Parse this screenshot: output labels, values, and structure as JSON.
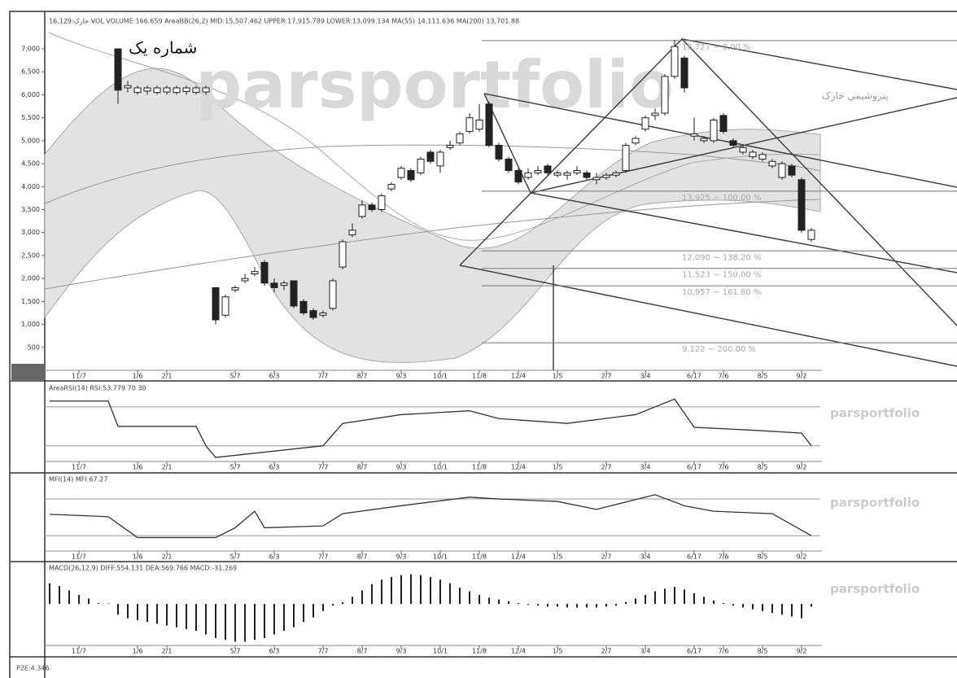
{
  "header": "16,129:خارک VOL VOLUME:166.659 AreaBB(26,2) MID:15,507.462 UPPER:17,915.789 LOWER:13,099.134 MA(55) 14,111.636 MA(200) 13,701.88",
  "caption": "شماره یک",
  "symbol_name": "پتروشیمی خارک",
  "watermark": "parsportfolio",
  "footer": "P2E:4.346",
  "chart_data": [
    {
      "type": "candlestick",
      "x": [
        7,
        8,
        9,
        10,
        11,
        12,
        13,
        14,
        15,
        16,
        17,
        18,
        19,
        20,
        21,
        22,
        23,
        24,
        25,
        26,
        27,
        28,
        29,
        30,
        31,
        32,
        33,
        34,
        35,
        36,
        37,
        38,
        39,
        40,
        41,
        42,
        43,
        44,
        45,
        46,
        47,
        48,
        49,
        50,
        51,
        52,
        53,
        54,
        55,
        56,
        57,
        58,
        59,
        60,
        61,
        62,
        63,
        64,
        65,
        66,
        67,
        68,
        69,
        70,
        71,
        72,
        73,
        74,
        75,
        76,
        77,
        78
      ],
      "open": [
        7000,
        6150,
        6050,
        6080,
        6050,
        6060,
        6050,
        6070,
        6050,
        6060,
        1800,
        1200,
        1750,
        1950,
        2100,
        2350,
        1900,
        1850,
        1950,
        1500,
        1300,
        1200,
        1350,
        2250,
        2950,
        3350,
        3600,
        3500,
        3950,
        4200,
        4350,
        4300,
        4750,
        4450,
        4850,
        4950,
        5200,
        5250,
        5800,
        4900,
        4600,
        4350,
        4200,
        4300,
        4450,
        4250,
        4250,
        4300,
        4300,
        4150,
        4200,
        4250,
        4350,
        4950,
        5250,
        5550,
        5600,
        6400,
        6800,
        5100,
        5000,
        5000,
        5550,
        5000,
        4750,
        4650,
        4600,
        4450,
        4200,
        4450,
        4150,
        2850
      ],
      "high": [
        7000,
        6300,
        6200,
        6200,
        6200,
        6200,
        6200,
        6200,
        6200,
        6200,
        1800,
        1650,
        1850,
        2100,
        2250,
        2400,
        2000,
        1950,
        1950,
        1550,
        1350,
        1300,
        2000,
        2850,
        3200,
        3700,
        3650,
        3850,
        4100,
        4450,
        4400,
        4650,
        4800,
        4800,
        5000,
        5200,
        5600,
        5800,
        5850,
        4950,
        4650,
        4400,
        4400,
        4450,
        4500,
        4350,
        4350,
        4450,
        4350,
        4300,
        4300,
        4350,
        4950,
        5100,
        5550,
        5700,
        6450,
        7200,
        6850,
        5500,
        5100,
        5500,
        5600,
        5050,
        4900,
        4800,
        4750,
        4600,
        4550,
        4500,
        4200,
        3100
      ],
      "low": [
        5800,
        6050,
        6000,
        6000,
        6000,
        6000,
        6000,
        6000,
        6000,
        6000,
        1000,
        1150,
        1700,
        1900,
        2050,
        1850,
        1700,
        1750,
        1350,
        1200,
        1100,
        1150,
        1300,
        2200,
        2900,
        3300,
        3450,
        3450,
        3900,
        4150,
        4100,
        4250,
        4500,
        4300,
        4800,
        4900,
        5150,
        5200,
        4850,
        4550,
        4300,
        4050,
        4150,
        4250,
        4250,
        4200,
        4150,
        4250,
        4150,
        4050,
        4150,
        4200,
        4300,
        4900,
        5200,
        5450,
        5550,
        6350,
        6050,
        5000,
        4950,
        4950,
        5150,
        4850,
        4700,
        4600,
        4550,
        4400,
        4150,
        4200,
        3000,
        2800
      ],
      "close": [
        6100,
        6200,
        6150,
        6150,
        6150,
        6150,
        6150,
        6150,
        6150,
        6150,
        1100,
        1600,
        1800,
        2000,
        2150,
        1900,
        1800,
        1900,
        1400,
        1250,
        1150,
        1250,
        1950,
        2800,
        3050,
        3600,
        3500,
        3800,
        4050,
        4400,
        4150,
        4600,
        4550,
        4750,
        4900,
        5150,
        5500,
        5450,
        4900,
        4600,
        4350,
        4100,
        4300,
        4350,
        4300,
        4300,
        4300,
        4350,
        4200,
        4200,
        4250,
        4300,
        4900,
        5050,
        5500,
        5600,
        6400,
        7050,
        6150,
        5150,
        5050,
        5450,
        5200,
        4900,
        4850,
        4750,
        4700,
        4550,
        4500,
        4250,
        3050,
        3050
      ],
      "xlim": [
        0,
        78
      ],
      "xticks": [
        {
          "value": 3,
          "label": "11/7"
        },
        {
          "value": 9,
          "label": "1/6"
        },
        {
          "value": 12,
          "label": "2/1"
        },
        {
          "value": 19,
          "label": "5/7"
        },
        {
          "value": 23,
          "label": "6/3"
        },
        {
          "value": 28,
          "label": "7/7"
        },
        {
          "value": 32,
          "label": "8/7"
        },
        {
          "value": 36,
          "label": "9/3"
        },
        {
          "value": 40,
          "label": "10/1"
        },
        {
          "value": 44,
          "label": "11/8"
        },
        {
          "value": 48,
          "label": "12/4"
        },
        {
          "value": 52,
          "label": "1/5"
        },
        {
          "value": 57,
          "label": "2/7"
        },
        {
          "value": 61,
          "label": "3/4"
        },
        {
          "value": 66,
          "label": "6/17"
        },
        {
          "value": 69,
          "label": "7/6"
        },
        {
          "value": 73,
          "label": "8/5"
        },
        {
          "value": 77,
          "label": "9/2"
        }
      ],
      "ylim": [
        0,
        7709
      ],
      "yticks": [
        500,
        {
          "value": 1000,
          "label": "1,000"
        },
        {
          "value": 1500,
          "label": "1,500"
        },
        {
          "value": 2000,
          "label": "2,000"
        },
        {
          "value": 2500,
          "label": "2,500"
        },
        {
          "value": 3000,
          "label": "3,000"
        },
        {
          "value": 3500,
          "label": "3,500"
        },
        {
          "value": 4000,
          "label": "4,000"
        },
        {
          "value": 4500,
          "label": "4,500"
        },
        {
          "value": 5000,
          "label": "5,000"
        },
        {
          "value": 5500,
          "label": "5,500"
        },
        {
          "value": 6000,
          "label": "6,000"
        },
        {
          "value": 6500,
          "label": "6,500"
        },
        {
          "value": 7000,
          "label": "7,000"
        }
      ],
      "fib_levels": [
        {
          "price": 7180,
          "label": "18,727 ~ 0.00 %"
        },
        {
          "price": 3900,
          "label": "13,925 ~ 100.00 %"
        },
        {
          "price": 2600,
          "label": "12,090 ~ 138.20 %"
        },
        {
          "price": 2220,
          "label": "11,523 ~ 150.00 %"
        },
        {
          "price": 1840,
          "label": "10,957 ~ 161.80 %"
        },
        {
          "price": 600,
          "label": "9,122 ~ 200.00 %"
        }
      ]
    },
    {
      "type": "line",
      "title": "AreaRSI(14) RSI:53.779 70 30",
      "x": [
        0,
        6,
        7,
        15,
        16,
        17,
        28,
        30,
        36,
        43,
        46,
        53,
        60,
        64,
        66,
        72,
        77,
        78
      ],
      "values": [
        76,
        76,
        50,
        50,
        30,
        18,
        30,
        53,
        62,
        66,
        58,
        53,
        62,
        78,
        49,
        46,
        43,
        30
      ],
      "levels": [
        70,
        30
      ],
      "ylim": [
        8,
        95
      ],
      "xlim": [
        0,
        78
      ]
    },
    {
      "type": "line",
      "title": "MFI(14) MFI:67.27",
      "x": [
        0,
        6,
        9,
        17,
        19,
        21,
        22,
        28,
        30,
        36,
        43,
        46,
        52,
        56,
        62,
        65,
        68,
        74,
        78
      ],
      "values": [
        55,
        51,
        17,
        17,
        33,
        60,
        33,
        36,
        56,
        69,
        83,
        80,
        76,
        63,
        87,
        69,
        60,
        56,
        20
      ],
      "levels": [
        80,
        20
      ],
      "ylim": [
        -13,
        108
      ],
      "xlim": [
        0,
        78
      ]
    },
    {
      "type": "bar",
      "title": "MACD(26,12,9) DIFF:554.131 DEA:569.766 MACD:-31.269",
      "values": [
        230,
        200,
        150,
        100,
        60,
        10,
        5,
        -120,
        -160,
        -180,
        -200,
        -220,
        -240,
        -260,
        -280,
        -300,
        -340,
        -380,
        -400,
        -420,
        -420,
        -400,
        -380,
        -340,
        -300,
        -260,
        -200,
        -150,
        -80,
        -20,
        20,
        80,
        150,
        220,
        270,
        300,
        320,
        330,
        320,
        300,
        270,
        230,
        180,
        140,
        100,
        70,
        50,
        30,
        10,
        -10,
        -20,
        -30,
        -30,
        -40,
        -40,
        -40,
        -40,
        -30,
        -20,
        20,
        60,
        100,
        140,
        170,
        190,
        160,
        120,
        80,
        40,
        10,
        -20,
        -40,
        -60,
        -80,
        -100,
        -120,
        -140,
        -160,
        -31
      ],
      "ylim": [
        -480,
        380
      ],
      "xlim": [
        0,
        78
      ]
    }
  ]
}
